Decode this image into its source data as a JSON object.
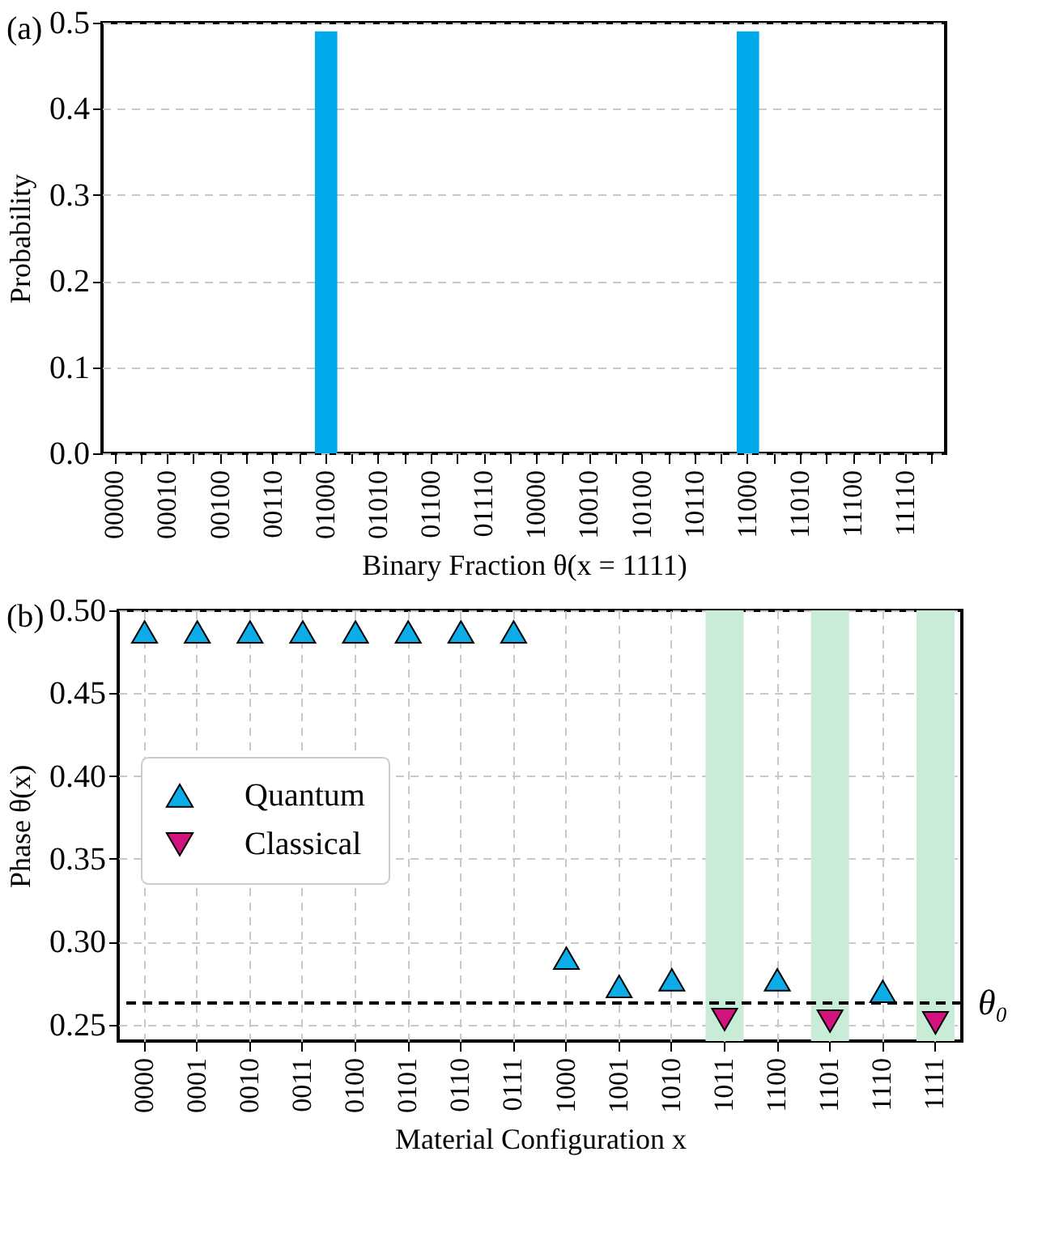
{
  "chart_data": [
    {
      "type": "bar",
      "title": "(a)",
      "xlabel": "Binary Fraction θ(x = 1111)",
      "ylabel": "Probability",
      "categories": [
        "00000",
        null,
        "00010",
        null,
        "00100",
        null,
        "00110",
        null,
        "01000",
        null,
        "01010",
        null,
        "01100",
        null,
        "01110",
        null,
        "10000",
        null,
        "10010",
        null,
        "10100",
        null,
        "10110",
        null,
        "11000",
        null,
        "11010",
        null,
        "11100",
        null,
        "11110",
        null
      ],
      "series": [
        {
          "color": "#00a9ea",
          "values": [
            0,
            0,
            0,
            0,
            0,
            0,
            0,
            0,
            0.49,
            0,
            0,
            0,
            0,
            0,
            0,
            0,
            0,
            0,
            0,
            0,
            0,
            0,
            0,
            0,
            0.49,
            0,
            0,
            0,
            0,
            0,
            0,
            0
          ]
        }
      ],
      "ylim": [
        0,
        0.5
      ],
      "yticks": [
        {
          "value": 0,
          "label": "0.0"
        },
        0.1,
        0.2,
        0.3,
        0.4,
        0.5
      ],
      "grid": "y"
    },
    {
      "type": "scatter",
      "title": "(b)",
      "xlabel": "Material Configuration x",
      "ylabel": "Phase θ(x)",
      "categories": [
        "0000",
        "0001",
        "0010",
        "0011",
        "0100",
        "0101",
        "0110",
        "0111",
        "1000",
        "1001",
        "1010",
        "1011",
        "1100",
        "1101",
        "1110",
        "1111"
      ],
      "series": [
        {
          "name": "Quantum",
          "color": "#0bace8",
          "marker": "triangle",
          "values": [
            0.487,
            0.487,
            0.487,
            0.487,
            0.487,
            0.487,
            0.487,
            0.487,
            0.29,
            0.273,
            0.277,
            null,
            0.277,
            null,
            0.27,
            null
          ]
        },
        {
          "name": "Classical",
          "color": "#d3137d",
          "marker": "triangle-down",
          "values": [
            null,
            null,
            null,
            null,
            null,
            null,
            null,
            null,
            null,
            null,
            null,
            0.253,
            null,
            0.252,
            null,
            0.251
          ]
        }
      ],
      "ylim": [
        0.24,
        0.5
      ],
      "yticks": [
        0.25,
        {
          "value": 0.3,
          "label": "0.30"
        },
        0.35,
        {
          "value": 0.4,
          "label": "0.40"
        },
        0.45,
        {
          "value": 0.5,
          "label": "0.50"
        }
      ],
      "grid": true,
      "legend": "center left",
      "ref_lines": [
        {
          "axis": "y",
          "value": 0.263,
          "label": "θ₀",
          "color": "#000000",
          "line_style": "dashed"
        }
      ],
      "bands": [
        {
          "axis": "x",
          "from": "1011",
          "to": "1011",
          "color": "#c8ecd8"
        },
        {
          "axis": "x",
          "from": "1101",
          "to": "1101",
          "color": "#c8ecd8"
        },
        {
          "axis": "x",
          "from": "1111",
          "to": "1111",
          "color": "#c8ecd8"
        }
      ]
    }
  ]
}
